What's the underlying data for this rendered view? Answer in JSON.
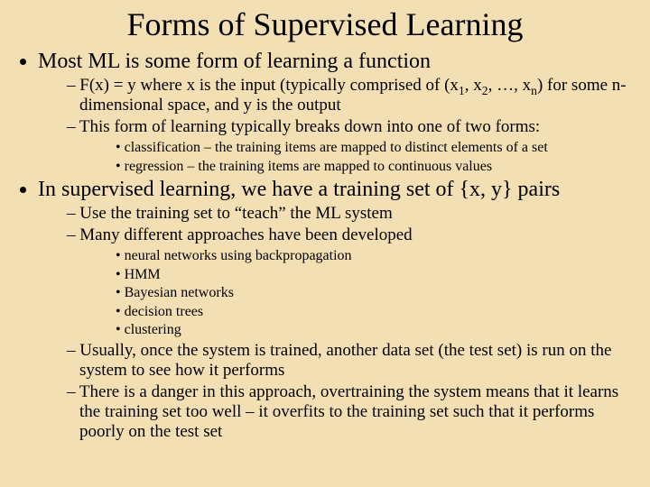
{
  "background_color": "#f3dfb4",
  "text_color": "#000000",
  "font_family": "Times New Roman",
  "title": "Forms of Supervised Learning",
  "title_fontsize": 36,
  "l1_fontsize": 24,
  "l2_fontsize": 19,
  "l3_fontsize": 16,
  "b1": {
    "text": "Most ML is some form of learning a function",
    "sub": {
      "s1_prefix": "F(x) = y where x is the input (typically comprised of (x",
      "s1_sub1": "1",
      "s1_mid1": ", x",
      "s1_sub2": "2",
      "s1_mid2": ", …, x",
      "s1_sub3": "n",
      "s1_suffix": ") for some n-dimensional space, and y is the output",
      "s2": "This form of learning typically breaks down into one of two forms:",
      "s2_items": {
        "a": "classification – the training items are mapped to distinct elements of a set",
        "b": "regression – the training items are mapped to continuous values"
      }
    }
  },
  "b2": {
    "text": "In supervised learning, we have a training set of {x, y} pairs",
    "sub": {
      "s1": "Use the training set to “teach” the ML system",
      "s2": "Many different approaches have been developed",
      "s2_items": {
        "a": "neural networks using backpropagation",
        "b": "HMM",
        "c": "Bayesian networks",
        "d": "decision trees",
        "e": "clustering"
      },
      "s3": "Usually, once the system is trained, another data set (the test set) is run on the system to see how it performs",
      "s4": "There is a danger in this approach, overtraining the system means that it learns the training set too well – it overfits to the training set such that it performs poorly on the test set"
    }
  }
}
